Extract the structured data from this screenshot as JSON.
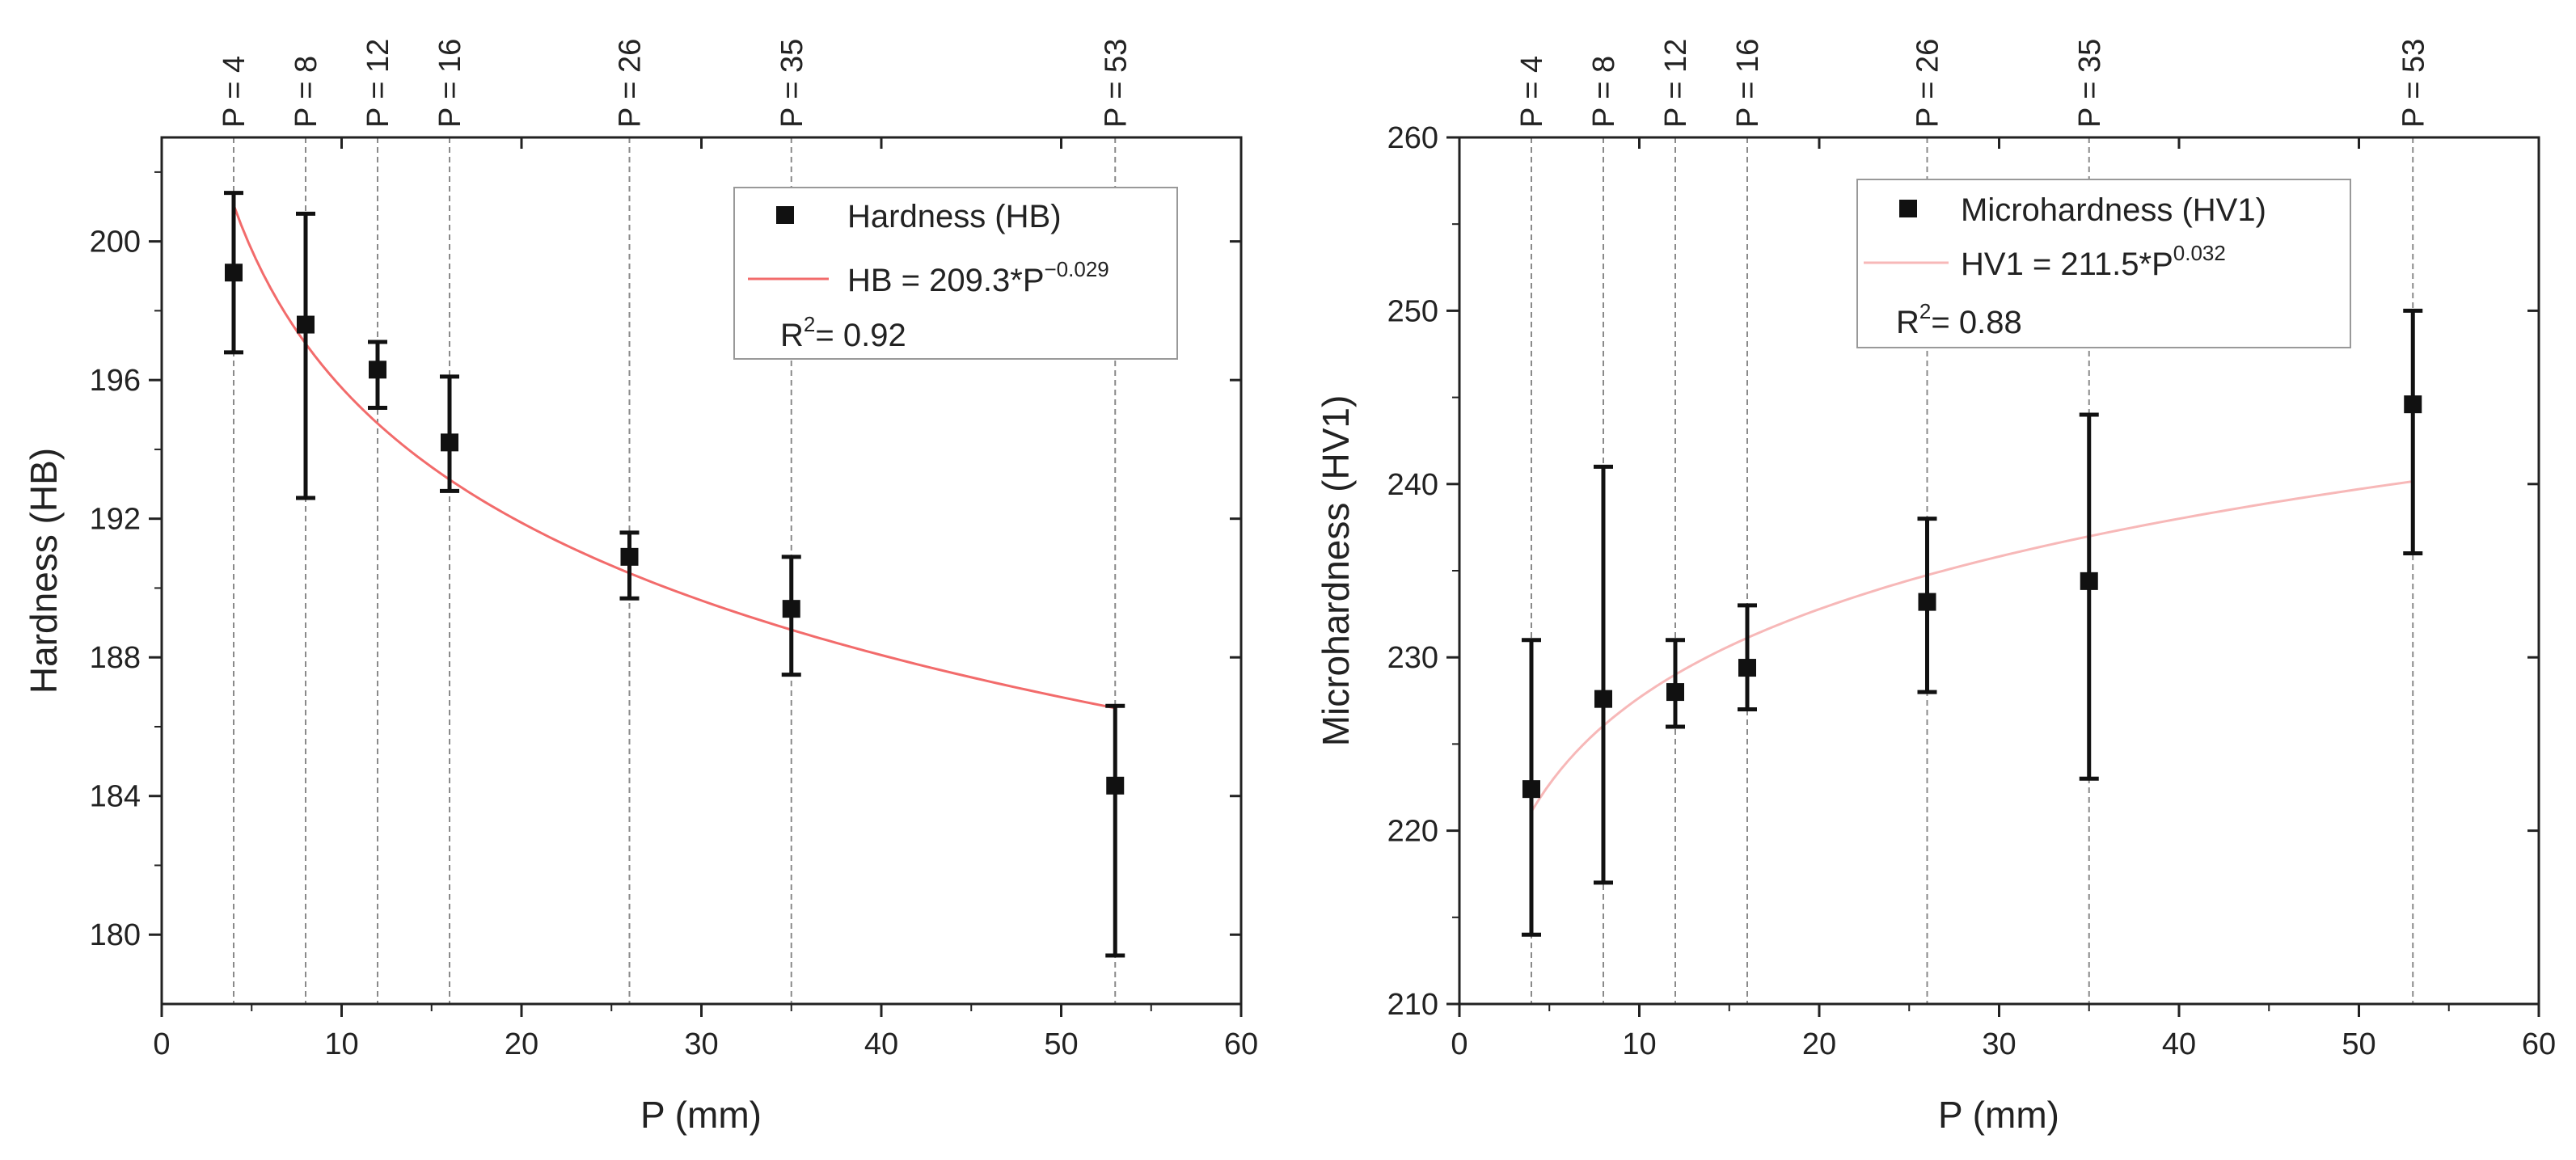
{
  "chart_data": [
    {
      "type": "scatter",
      "id": "left",
      "xlabel": "P (mm)",
      "ylabel": "Hardness (HB)",
      "xlim": [
        0,
        60
      ],
      "ylim": [
        178,
        203
      ],
      "xticks": [
        0,
        10,
        20,
        30,
        40,
        50,
        60
      ],
      "yticks": [
        180,
        184,
        188,
        192,
        196,
        200
      ],
      "series": [
        {
          "name": "Hardness (HB)",
          "x": [
            4,
            8,
            12,
            16,
            26,
            35,
            53
          ],
          "y": [
            199.1,
            197.6,
            196.3,
            194.2,
            190.9,
            189.4,
            184.3
          ],
          "err_low": [
            196.8,
            192.6,
            195.2,
            192.8,
            189.7,
            187.5,
            179.4
          ],
          "err_high": [
            201.4,
            200.8,
            197.1,
            196.1,
            191.6,
            190.9,
            186.6
          ]
        }
      ],
      "fit": {
        "coef": 209.3,
        "exponent": -0.029,
        "x_range": [
          4,
          53
        ],
        "color": "#f26b6b",
        "label_main": "HB = 209.3*P",
        "label_exp": "−0.029"
      },
      "legend": {
        "marker_label": "Hardness (HB)",
        "r2_prefix": "R",
        "r2_sup": "2",
        "r2_value": "= 0.92",
        "position": "top-right"
      },
      "ref_lines": [
        "P = 4",
        "P = 8",
        "P = 12",
        "P = 16",
        "P = 26",
        "P = 35",
        "P = 53"
      ],
      "ref_x": [
        4,
        8,
        12,
        16,
        26,
        35,
        53
      ]
    },
    {
      "type": "scatter",
      "id": "right",
      "xlabel": "P (mm)",
      "ylabel": "Microhardness (HV1)",
      "xlim": [
        0,
        60
      ],
      "ylim": [
        210,
        260
      ],
      "xticks": [
        0,
        10,
        20,
        30,
        40,
        50,
        60
      ],
      "yticks": [
        210,
        220,
        230,
        240,
        250,
        260
      ],
      "series": [
        {
          "name": "Microhardness (HV1)",
          "x": [
            4,
            8,
            12,
            16,
            26,
            35,
            53
          ],
          "y": [
            222.4,
            227.6,
            228.0,
            229.4,
            233.2,
            234.4,
            244.6
          ],
          "err_low": [
            214.0,
            217.0,
            226.0,
            227.0,
            228.0,
            223.0,
            236.0
          ],
          "err_high": [
            231.0,
            241.0,
            231.0,
            233.0,
            238.0,
            244.0,
            250.0
          ]
        }
      ],
      "fit": {
        "coef": 211.5,
        "exponent": 0.032,
        "x_range": [
          4,
          53
        ],
        "color": "#f7b8b8",
        "label_main": "HV1 = 211.5*P",
        "label_exp": "0.032"
      },
      "legend": {
        "marker_label": "Microhardness (HV1)",
        "r2_prefix": "R",
        "r2_sup": "2",
        "r2_value": "= 0.88",
        "position": "top-right"
      },
      "ref_lines": [
        "P = 4",
        "P = 8",
        "P = 12",
        "P = 16",
        "P = 26",
        "P = 35",
        "P = 53"
      ],
      "ref_x": [
        4,
        8,
        12,
        16,
        26,
        35,
        53
      ]
    }
  ]
}
